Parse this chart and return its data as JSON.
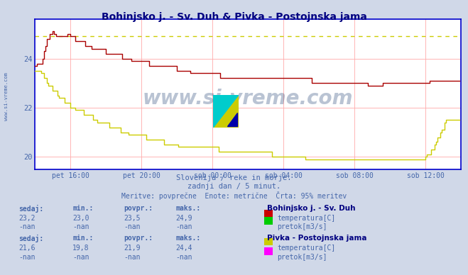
{
  "title": "Bohinjsko j. - Sv. Duh & Pivka - Postojnska jama",
  "background_color": "#d0d8e8",
  "plot_bg_color": "#ffffff",
  "grid_color": "#ffaaaa",
  "axis_color": "#0000cc",
  "title_color": "#000080",
  "text_color": "#4466aa",
  "label_color": "#334488",
  "ylim": [
    19.5,
    25.6
  ],
  "yticks": [
    20,
    22,
    24
  ],
  "xlim": [
    0,
    288
  ],
  "xtick_positions": [
    24,
    72,
    120,
    168,
    216,
    264
  ],
  "xtick_labels": [
    "pet 16:00",
    "pet 20:00",
    "sob 00:00",
    "sob 04:00",
    "sob 08:00",
    "sob 12:00"
  ],
  "subtitle1": "Slovenija / reke in morje.",
  "subtitle2": "zadnji dan / 5 minut.",
  "subtitle3": "Meritve: povprečne  Enote: metrične  Črta: 95% meritev",
  "watermark": "www.si-vreme.com",
  "station1_name": "Bohinjsko j. - Sv. Duh",
  "station2_name": "Pivka - Postojnska jama",
  "line1_color": "#aa0000",
  "line2_color": "#cccc00",
  "dashed_line_y": 24.9,
  "dashed_line_color": "#cccc00",
  "s1_sedaj": "23,2",
  "s1_min": "23,0",
  "s1_povpr": "23,5",
  "s1_maks": "24,9",
  "s1_temp_color": "#cc0000",
  "s1_pretok_color": "#00cc00",
  "s2_sedaj": "21,6",
  "s2_min": "19,8",
  "s2_povpr": "21,9",
  "s2_maks": "24,4",
  "s2_temp_color": "#cccc00",
  "s2_pretok_color": "#ff00ff",
  "nan_val": "-nan"
}
